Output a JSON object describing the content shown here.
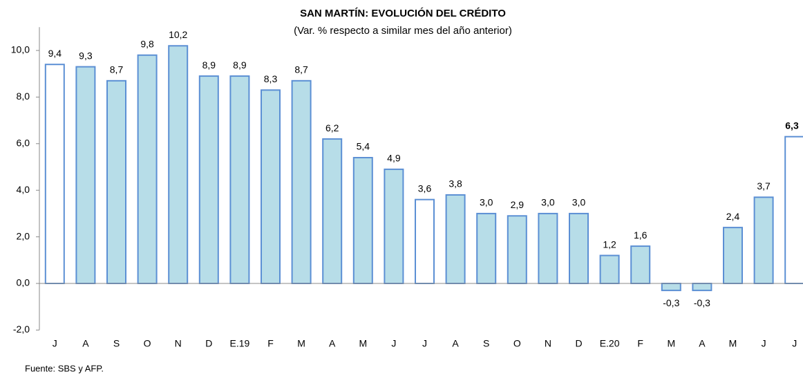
{
  "chart_data": {
    "type": "bar",
    "title": "SAN MARTÍN: EVOLUCIÓN DEL CRÉDITO",
    "subtitle": "(Var. % respecto a similar mes del año anterior)",
    "source": "Fuente: SBS y AFP.",
    "categories": [
      "J",
      "A",
      "S",
      "O",
      "N",
      "D",
      "E.19",
      "F",
      "M",
      "A",
      "M",
      "J",
      "J",
      "A",
      "S",
      "O",
      "N",
      "D",
      "E.20",
      "F",
      "M",
      "A",
      "M",
      "J",
      "J"
    ],
    "values": [
      9.4,
      9.3,
      8.7,
      9.8,
      10.2,
      8.9,
      8.9,
      8.3,
      8.7,
      6.2,
      5.4,
      4.9,
      3.6,
      3.8,
      3.0,
      2.9,
      3.0,
      3.0,
      1.2,
      1.6,
      -0.3,
      -0.3,
      2.4,
      3.7,
      6.3
    ],
    "value_labels": [
      "9,4",
      "9,3",
      "8,7",
      "9,8",
      "10,2",
      "8,9",
      "8,9",
      "8,3",
      "8,7",
      "6,2",
      "5,4",
      "4,9",
      "3,6",
      "3,8",
      "3,0",
      "2,9",
      "3,0",
      "3,0",
      "1,2",
      "1,6",
      "-0,3",
      "-0,3",
      "2,4",
      "3,7",
      "6,3"
    ],
    "colors": [
      "#ffffff",
      "#b7dde8",
      "#b7dde8",
      "#b7dde8",
      "#b7dde8",
      "#b7dde8",
      "#b7dde8",
      "#b7dde8",
      "#b7dde8",
      "#b7dde8",
      "#b7dde8",
      "#b7dde8",
      "#ffffff",
      "#b7dde8",
      "#b7dde8",
      "#b7dde8",
      "#b7dde8",
      "#b7dde8",
      "#b7dde8",
      "#b7dde8",
      "#b7dde8",
      "#b7dde8",
      "#b7dde8",
      "#b7dde8",
      "#ffffff"
    ],
    "edge_color": "#5b8fd4",
    "bold_label_index": 24,
    "ylim": [
      -2,
      11
    ],
    "yticks": [
      {
        "value": -2,
        "label": "-2,0"
      },
      {
        "value": 0,
        "label": "0,0"
      },
      {
        "value": 2,
        "label": "2,0"
      },
      {
        "value": 4,
        "label": "4,0"
      },
      {
        "value": 6,
        "label": "6,0"
      },
      {
        "value": 8,
        "label": "8,0"
      },
      {
        "value": 10,
        "label": "10,0"
      }
    ],
    "grid": false
  }
}
